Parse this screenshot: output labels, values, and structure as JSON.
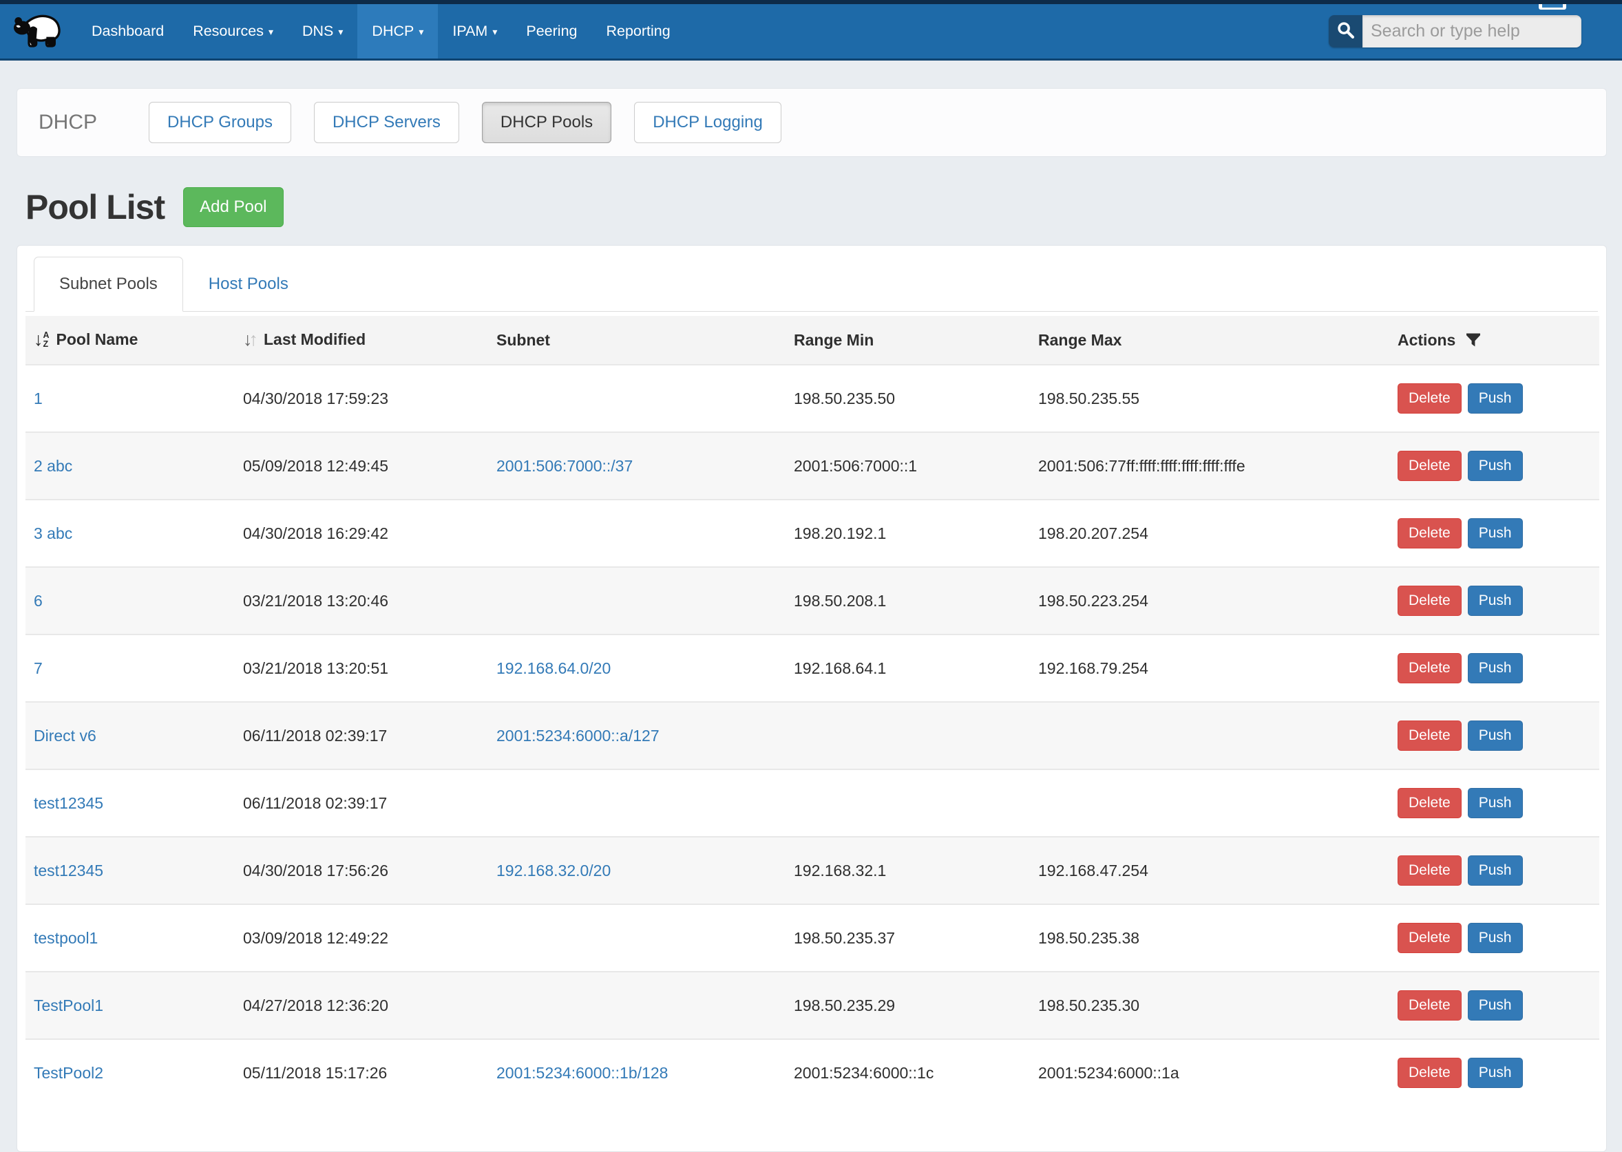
{
  "nav": {
    "items": [
      {
        "label": "Dashboard",
        "caret": false,
        "active": false
      },
      {
        "label": "Resources",
        "caret": true,
        "active": false
      },
      {
        "label": "DNS",
        "caret": true,
        "active": false
      },
      {
        "label": "DHCP",
        "caret": true,
        "active": true
      },
      {
        "label": "IPAM",
        "caret": true,
        "active": false
      },
      {
        "label": "Peering",
        "caret": false,
        "active": false
      },
      {
        "label": "Reporting",
        "caret": false,
        "active": false
      }
    ],
    "search": {
      "placeholder": "Search or type help",
      "value": ""
    }
  },
  "dhcp_bar": {
    "title": "DHCP",
    "buttons": [
      {
        "label": "DHCP Groups",
        "active": false
      },
      {
        "label": "DHCP Servers",
        "active": false
      },
      {
        "label": "DHCP Pools",
        "active": true
      },
      {
        "label": "DHCP Logging",
        "active": false
      }
    ]
  },
  "page": {
    "title": "Pool List",
    "add_button_label": "Add Pool"
  },
  "tabs": [
    {
      "label": "Subnet Pools",
      "active": true
    },
    {
      "label": "Host Pools",
      "active": false
    }
  ],
  "pool_table": {
    "columns": [
      "Pool Name",
      "Last Modified",
      "Subnet",
      "Range Min",
      "Range Max",
      "Actions"
    ],
    "row_action_labels": [
      "Delete",
      "Push"
    ],
    "rows": [
      {
        "name": "1",
        "modified": "04/30/2018 17:59:23",
        "subnet": "",
        "range_min": "198.50.235.50",
        "range_max": "198.50.235.55"
      },
      {
        "name": "2 abc",
        "modified": "05/09/2018 12:49:45",
        "subnet": "2001:506:7000::/37",
        "range_min": "2001:506:7000::1",
        "range_max": "2001:506:77ff:ffff:ffff:ffff:ffff:fffe"
      },
      {
        "name": "3 abc",
        "modified": "04/30/2018 16:29:42",
        "subnet": "",
        "range_min": "198.20.192.1",
        "range_max": "198.20.207.254"
      },
      {
        "name": "6",
        "modified": "03/21/2018 13:20:46",
        "subnet": "",
        "range_min": "198.50.208.1",
        "range_max": "198.50.223.254"
      },
      {
        "name": "7",
        "modified": "03/21/2018 13:20:51",
        "subnet": "192.168.64.0/20",
        "range_min": "192.168.64.1",
        "range_max": "192.168.79.254"
      },
      {
        "name": "Direct v6",
        "modified": "06/11/2018 02:39:17",
        "subnet": "2001:5234:6000::a/127",
        "range_min": "",
        "range_max": ""
      },
      {
        "name": "test12345",
        "modified": "06/11/2018 02:39:17",
        "subnet": "",
        "range_min": "",
        "range_max": ""
      },
      {
        "name": "test12345",
        "modified": "04/30/2018 17:56:26",
        "subnet": "192.168.32.0/20",
        "range_min": "192.168.32.1",
        "range_max": "192.168.47.254"
      },
      {
        "name": "testpool1",
        "modified": "03/09/2018 12:49:22",
        "subnet": "",
        "range_min": "198.50.235.37",
        "range_max": "198.50.235.38"
      },
      {
        "name": "TestPool1",
        "modified": "04/27/2018 12:36:20",
        "subnet": "",
        "range_min": "198.50.235.29",
        "range_max": "198.50.235.30"
      },
      {
        "name": "TestPool2",
        "modified": "05/11/2018 15:17:26",
        "subnet": "2001:5234:6000::1b/128",
        "range_min": "2001:5234:6000::1c",
        "range_max": "2001:5234:6000::1a"
      }
    ]
  },
  "icons": {
    "logo": "panda-logo-icon",
    "search": "search-icon",
    "caret": "caret-down-icon",
    "sort_alpha": "sort-alpha-down-icon",
    "sort_updown": "sort-updown-icon",
    "filter": "filter-funnel-icon"
  },
  "colors": {
    "nav_bg": "#1e6aa8",
    "nav_active_bg": "#2d7bbb",
    "top_strip": "#0d2b49",
    "link_blue": "#337ab7",
    "success_green": "#5cb85c",
    "danger_red": "#d9534f",
    "page_bg": "#e9edf1",
    "stripe_row": "#f7f7f7",
    "table_header_bg": "#f4f4f4"
  }
}
